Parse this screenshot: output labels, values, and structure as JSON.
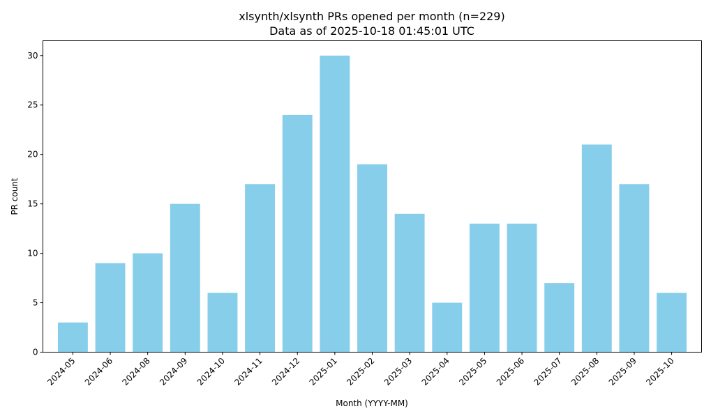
{
  "chart_data": {
    "type": "bar",
    "title": "xlsynth/xlsynth PRs opened per month (n=229)",
    "subtitle": "Data as of 2025-10-18 01:45:01 UTC",
    "xlabel": "Month (YYYY-MM)",
    "ylabel": "PR count",
    "categories": [
      "2024-05",
      "2024-06",
      "2024-08",
      "2024-09",
      "2024-10",
      "2024-11",
      "2024-12",
      "2025-01",
      "2025-02",
      "2025-03",
      "2025-04",
      "2025-05",
      "2025-06",
      "2025-07",
      "2025-08",
      "2025-09",
      "2025-10"
    ],
    "values": [
      3,
      9,
      10,
      15,
      6,
      17,
      24,
      30,
      19,
      14,
      5,
      13,
      13,
      7,
      21,
      17,
      6
    ],
    "ylim": [
      0,
      31.5
    ],
    "yticks": [
      0,
      5,
      10,
      15,
      20,
      25,
      30
    ],
    "bar_color": "#87ceeb",
    "grid": false,
    "legend": "none"
  }
}
